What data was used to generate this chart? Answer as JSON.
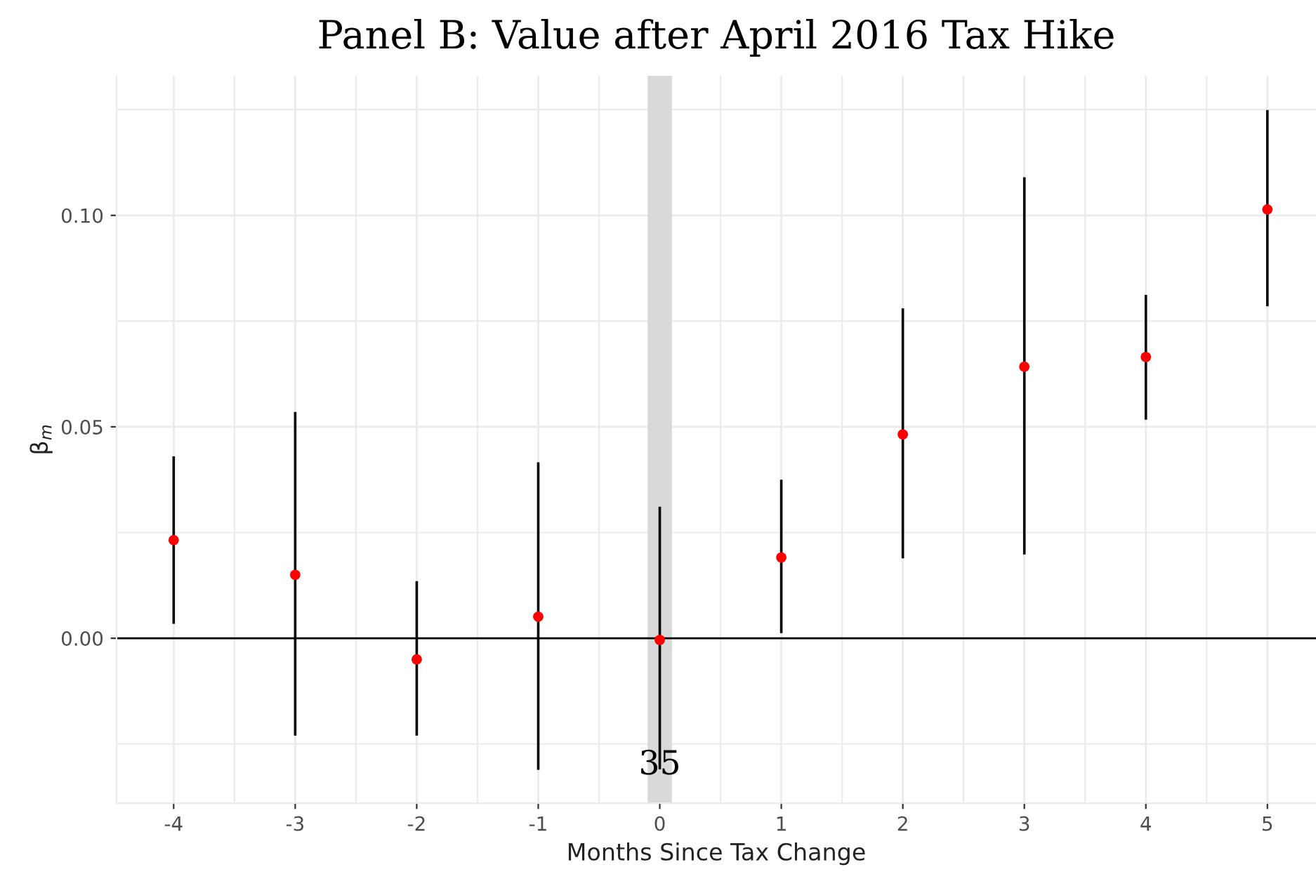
{
  "chart_data": {
    "type": "scatter",
    "title": "Panel B: Value after April 2016 Tax Hike",
    "xlabel": "Months Since Tax Change",
    "ylabel": "β$_{m}$",
    "x": [
      -4,
      -3,
      -2,
      -1,
      0,
      1,
      2,
      3,
      4,
      5
    ],
    "series": [
      {
        "color": "#ff0000",
        "values": [
          0.0232,
          0.015,
          -0.005,
          0.0051,
          -0.0004,
          0.0191,
          0.0482,
          0.0642,
          0.0665,
          0.1014
        ],
        "errors": [
          [
            0.0034,
            0.043
          ],
          [
            -0.023,
            0.0535
          ],
          [
            -0.023,
            0.0135
          ],
          [
            -0.0311,
            0.0416
          ],
          [
            -0.031,
            0.0311
          ],
          [
            0.0012,
            0.0375
          ],
          [
            0.0189,
            0.078
          ],
          [
            0.0198,
            0.109
          ],
          [
            0.0517,
            0.0812
          ],
          [
            0.0785,
            0.1249
          ]
        ]
      }
    ],
    "marker": "circle",
    "xlim": [
      -4.47,
      5.4
    ],
    "xticks": [
      -4,
      -3,
      -2,
      -1,
      0,
      1,
      2,
      3,
      4,
      5
    ],
    "ylim": [
      -0.039,
      0.133
    ],
    "yticks": [
      {
        "value": 0,
        "label": "0.00"
      },
      {
        "value": 0.05,
        "label": "0.05"
      },
      {
        "value": 0.1,
        "label": "0.10"
      }
    ],
    "grid": true,
    "ref_lines": [
      {
        "axis": "y",
        "value": 0,
        "color": "#000000"
      }
    ],
    "bands": [
      {
        "axis": "x",
        "from": -0.1,
        "to": 0.1,
        "color": "#d9d9d9"
      }
    ],
    "annotations": [
      {
        "text": "35",
        "x": 0,
        "y": -0.03
      }
    ]
  }
}
